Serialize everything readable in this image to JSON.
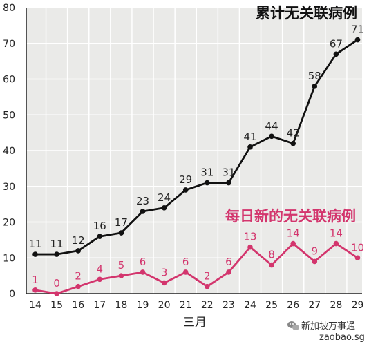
{
  "chart_data": {
    "type": "line",
    "x": [
      "14",
      "15",
      "16",
      "17",
      "18",
      "19",
      "20",
      "21",
      "22",
      "23",
      "24",
      "25",
      "26",
      "27",
      "28",
      "29"
    ],
    "xlabel": "三月",
    "ylabel": "",
    "ylim": [
      0,
      80
    ],
    "yticks": [
      0,
      10,
      20,
      30,
      40,
      50,
      60,
      70,
      80
    ],
    "grid": true,
    "series": [
      {
        "name": "累计无关联病例",
        "color": "#111111",
        "values": [
          11,
          11,
          12,
          16,
          17,
          23,
          24,
          29,
          31,
          31,
          41,
          44,
          42,
          58,
          67,
          71
        ]
      },
      {
        "name": "每日新的无关联病例",
        "color": "#d3356d",
        "values": [
          1,
          0,
          2,
          4,
          5,
          6,
          3,
          6,
          2,
          6,
          13,
          8,
          14,
          9,
          14,
          10
        ]
      }
    ]
  },
  "watermark": {
    "text": "新加坡万事通",
    "site": "zaobao.sg",
    "icon": "wechat-icon"
  },
  "colors": {
    "background": "#ffffff",
    "grid_fill": "#eaeae8",
    "grid_line": "#ffffff",
    "daily": "#d3356d",
    "cumulative": "#111111"
  }
}
